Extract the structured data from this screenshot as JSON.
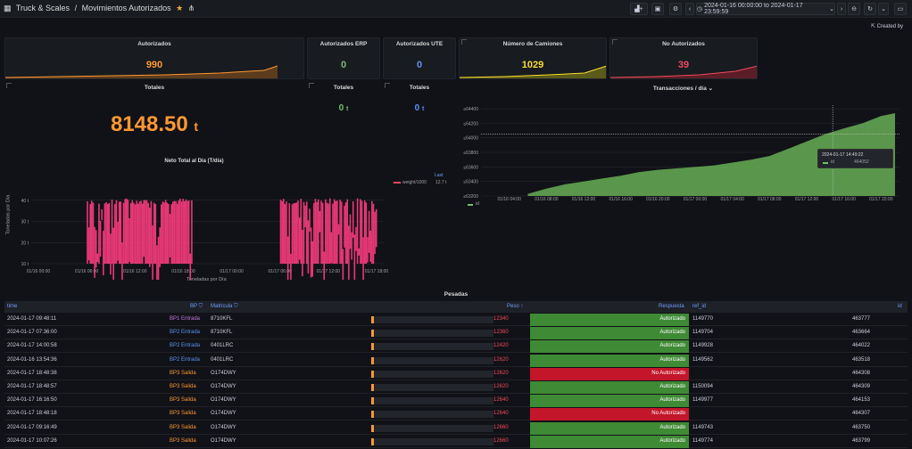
{
  "header": {
    "grid_icon": "grid-icon",
    "folder": "Truck & Scales",
    "separator": "/",
    "title": "Movimientos Autorizados",
    "time_range": "2024-01-16 00:00:00 to 2024-01-17 23:59:59",
    "created_by": "Created by"
  },
  "stats": {
    "autorizados": {
      "title": "Autorizados",
      "value": "990",
      "color": "#ff9830"
    },
    "erp": {
      "title": "Autorizados ERP",
      "value": "0",
      "color": "#73bf69"
    },
    "ute": {
      "title": "Autorizados UTE",
      "value": "0",
      "color": "#5794f2"
    },
    "camiones": {
      "title": "Número de Camiones",
      "value": "1029",
      "color": "#fade2a"
    },
    "no_aut": {
      "title": "No Autorizados",
      "value": "39",
      "color": "#f2495c"
    },
    "totales1": {
      "title": "Totales",
      "value": "8148.50",
      "unit": "t"
    },
    "totales2": {
      "title": "Totales",
      "value": "0",
      "unit": "t"
    },
    "totales3": {
      "title": "Totales",
      "value": "0",
      "unit": "t"
    }
  },
  "neto": {
    "title": "Neto Total al Día (T/día)",
    "ylabel": "Toneladas por Día",
    "xlabel": "Toneladas por Día",
    "yticks": [
      "40 t",
      "30 t",
      "20 t",
      "10 t"
    ],
    "xticks": [
      "01/16 00:00",
      "01/16 06:00",
      "01/16 12:00",
      "01/16 18:00",
      "01/17 00:00",
      "01/17 06:00",
      "01/17 12:00",
      "01/17 18:00"
    ],
    "legend_header": "Last",
    "legend_series": "weight/1000",
    "legend_value": "12.7 t",
    "color": "#ff3d7f"
  },
  "trans": {
    "title": "Transacciones / día",
    "yticks": [
      "464400",
      "464200",
      "464000",
      "463800",
      "463600",
      "463400",
      "463200"
    ],
    "xticks": [
      "01/16 04:00",
      "01/16 08:00",
      "01/16 12:00",
      "01/16 16:00",
      "01/16 20:00",
      "01/17 00:00",
      "01/17 04:00",
      "01/17 08:00",
      "01/17 12:00",
      "01/17 16:00",
      "01/17 20:00"
    ],
    "legend": "id",
    "tooltip_time": "2024-01-17 14:49:22",
    "tooltip_label": "id",
    "tooltip_value": "464052",
    "color": "#73bf69"
  },
  "chart_data": [
    {
      "type": "bar",
      "title": "Neto Total al Día (T/día)",
      "ylabel": "Toneladas por Día",
      "xlabel": "Toneladas por Día",
      "series": [
        {
          "name": "weight/1000",
          "last": 12.7
        }
      ],
      "ylim": [
        10,
        42
      ],
      "active_ranges": [
        [
          "01/16 06:00",
          "01/16 19:00"
        ],
        [
          "01/17 06:00",
          "01/17 19:00"
        ]
      ]
    },
    {
      "type": "area",
      "title": "Transacciones / día",
      "series": [
        {
          "name": "id",
          "x": [
            "01/16 06:00",
            "01/16 12:00",
            "01/16 18:00",
            "01/17 00:00",
            "01/17 06:00",
            "01/17 12:00",
            "01/17 18:00"
          ],
          "values": [
            463230,
            463400,
            463530,
            463600,
            463750,
            464052,
            464330
          ]
        }
      ],
      "ylim": [
        463200,
        464450
      ]
    }
  ],
  "table": {
    "title": "Pesadas",
    "columns": {
      "time": "time",
      "bp": "BP",
      "matricula": "Matricula",
      "peso": "Peso",
      "respuesta": "Respuesta",
      "ref": "ref_id",
      "id": "id"
    },
    "rows": [
      {
        "time": "2024-01-17 09:48:11",
        "bp": "BP1 Entrada",
        "mat": "8710KFL",
        "peso": "12340",
        "resp": "Autorizado",
        "ref": "1149770",
        "id": "463777",
        "bp_color": "#c678dd",
        "ok": true
      },
      {
        "time": "2024-01-17 07:36:00",
        "bp": "BP2 Entrada",
        "mat": "8710KFL",
        "peso": "12360",
        "resp": "Autorizado",
        "ref": "1149704",
        "id": "463664",
        "bp_color": "#5794f2",
        "ok": true
      },
      {
        "time": "2024-01-17 14:00:58",
        "bp": "BP2 Entrada",
        "mat": "0401LRC",
        "peso": "12420",
        "resp": "Autorizado",
        "ref": "1149928",
        "id": "464022",
        "bp_color": "#5794f2",
        "ok": true
      },
      {
        "time": "2024-01-16 13:54:36",
        "bp": "BP2 Entrada",
        "mat": "0401LRC",
        "peso": "12620",
        "resp": "Autorizado",
        "ref": "1149562",
        "id": "463518",
        "bp_color": "#5794f2",
        "ok": true
      },
      {
        "time": "2024-01-17 18:48:38",
        "bp": "BP3 Salida",
        "mat": "O174DWY",
        "peso": "12620",
        "resp": "No Autorizado",
        "ref": "",
        "id": "464308",
        "bp_color": "#ff9830",
        "ok": false
      },
      {
        "time": "2024-01-17 18:48:57",
        "bp": "BP3 Salida",
        "mat": "O174DWY",
        "peso": "12620",
        "resp": "Autorizado",
        "ref": "1150094",
        "id": "464309",
        "bp_color": "#ff9830",
        "ok": true
      },
      {
        "time": "2024-01-17 16:16:50",
        "bp": "BP3 Salida",
        "mat": "O174DWY",
        "peso": "12640",
        "resp": "Autorizado",
        "ref": "1149977",
        "id": "464153",
        "bp_color": "#ff9830",
        "ok": true
      },
      {
        "time": "2024-01-17 18:48:18",
        "bp": "BP3 Salida",
        "mat": "O174DWY",
        "peso": "12640",
        "resp": "No Autorizado",
        "ref": "",
        "id": "464307",
        "bp_color": "#ff9830",
        "ok": false
      },
      {
        "time": "2024-01-17 09:16:49",
        "bp": "BP3 Salida",
        "mat": "O174DWY",
        "peso": "12660",
        "resp": "Autorizado",
        "ref": "1149743",
        "id": "463750",
        "bp_color": "#ff9830",
        "ok": true
      },
      {
        "time": "2024-01-17 10:07:26",
        "bp": "BP3 Salida",
        "mat": "O174DWY",
        "peso": "12660",
        "resp": "Autorizado",
        "ref": "1149774",
        "id": "463799",
        "bp_color": "#ff9830",
        "ok": true
      }
    ]
  }
}
